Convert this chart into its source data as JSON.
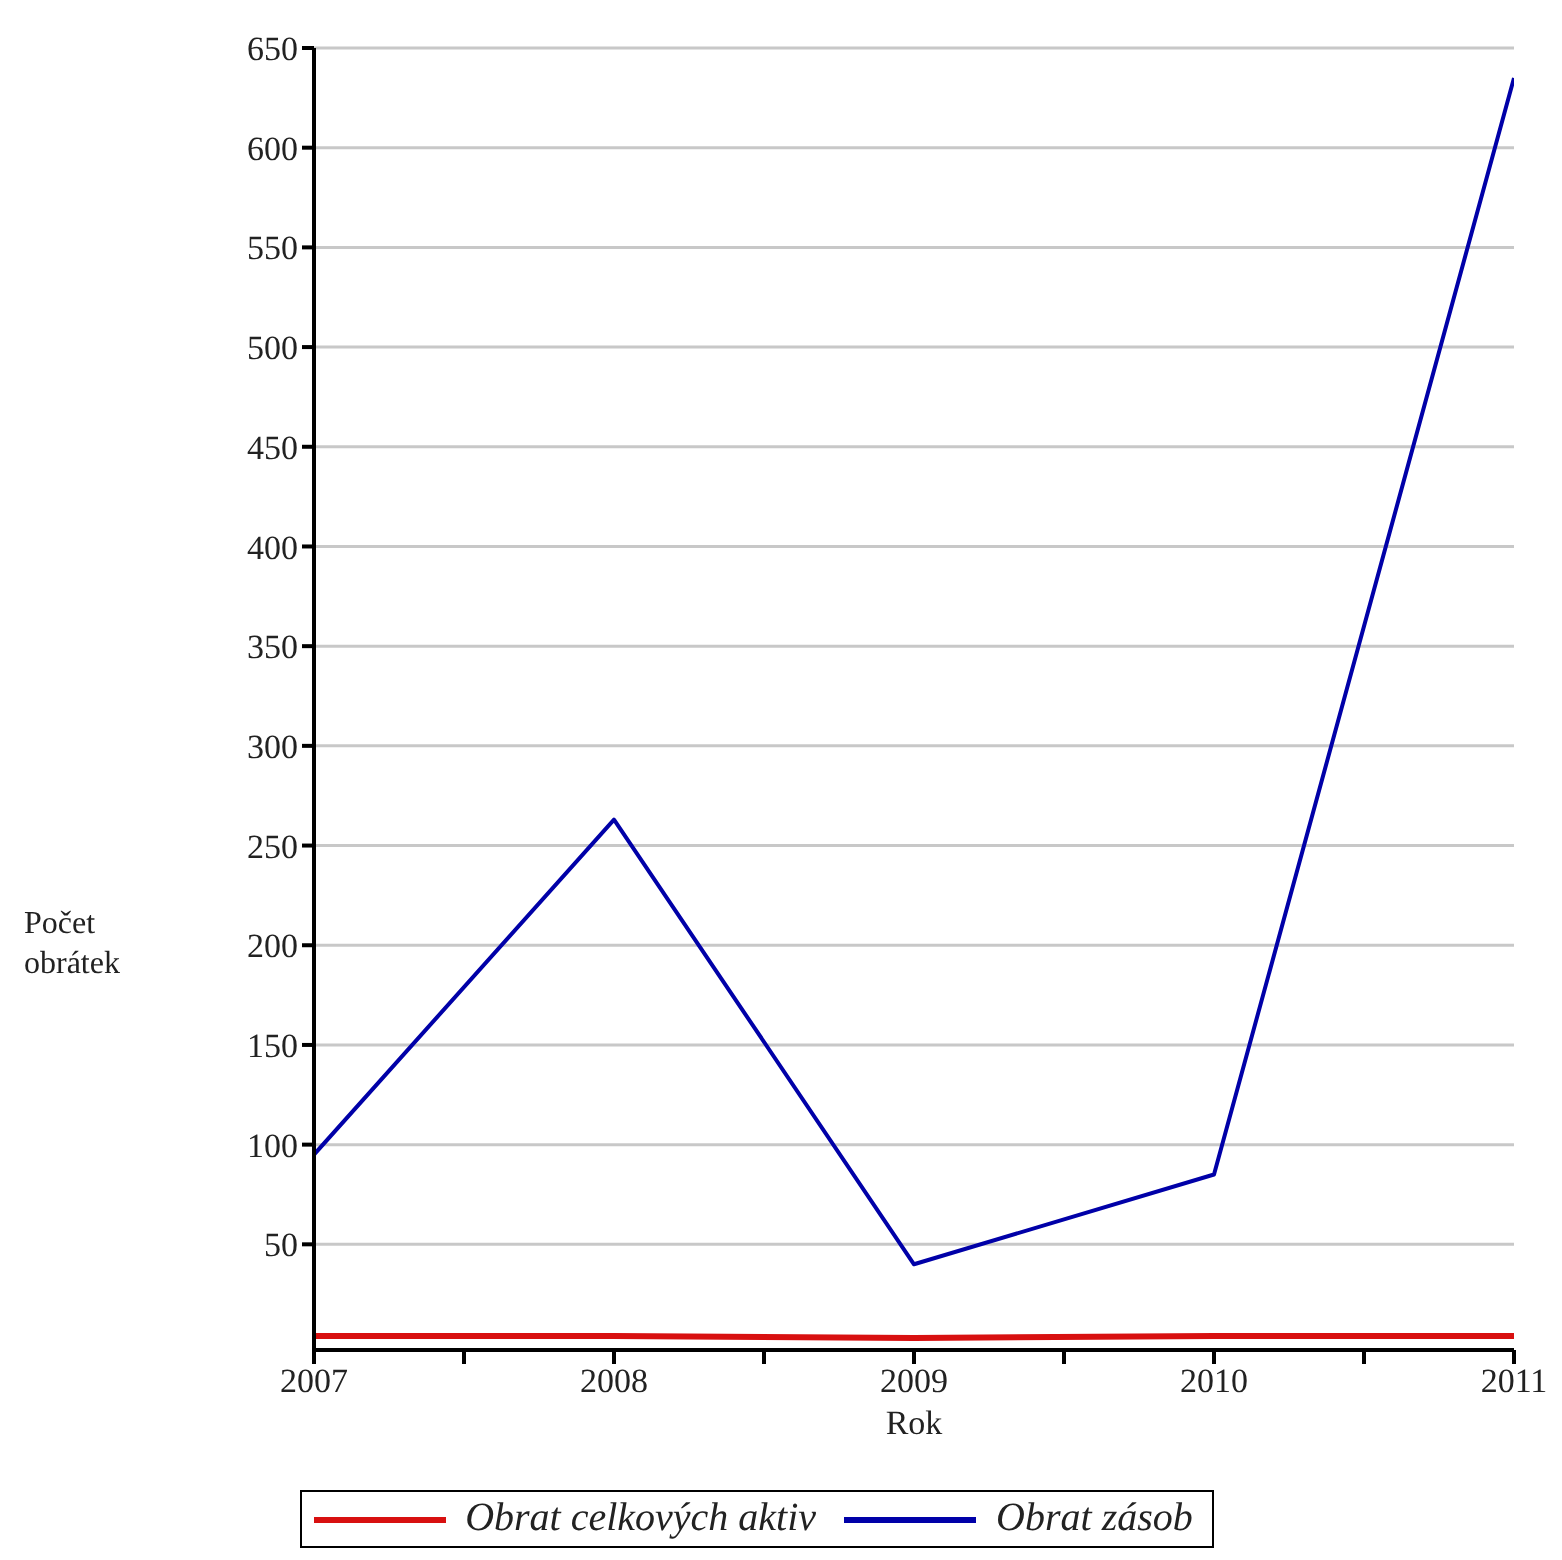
{
  "chart_data": {
    "type": "line",
    "xlabel": "Rok",
    "ylabel": "Počet obrátek",
    "x": [
      2007,
      2008,
      2009,
      2010,
      2011
    ],
    "series": [
      {
        "name": "Obrat celkových aktiv",
        "color": "#d81010",
        "values": [
          4,
          4,
          3,
          4,
          4
        ]
      },
      {
        "name": "Obrat zásob",
        "color": "#0000a8",
        "values": [
          95,
          263,
          40,
          85,
          635
        ]
      }
    ],
    "xlim": [
      2007,
      2011
    ],
    "xticks": [
      2007,
      {
        "value": 2007.5,
        "label": null
      },
      2008,
      {
        "value": 2008.5,
        "label": null
      },
      2009,
      {
        "value": 2009.5,
        "label": null
      },
      2010,
      {
        "value": 2010.5,
        "label": null
      },
      2011
    ],
    "ylim": [
      -3,
      650
    ],
    "yticks": [
      50,
      100,
      150,
      200,
      250,
      300,
      350,
      400,
      450,
      500,
      550,
      600,
      650
    ],
    "grid": "y",
    "legend": "bottom",
    "marker": "none",
    "line_style": "solid"
  }
}
